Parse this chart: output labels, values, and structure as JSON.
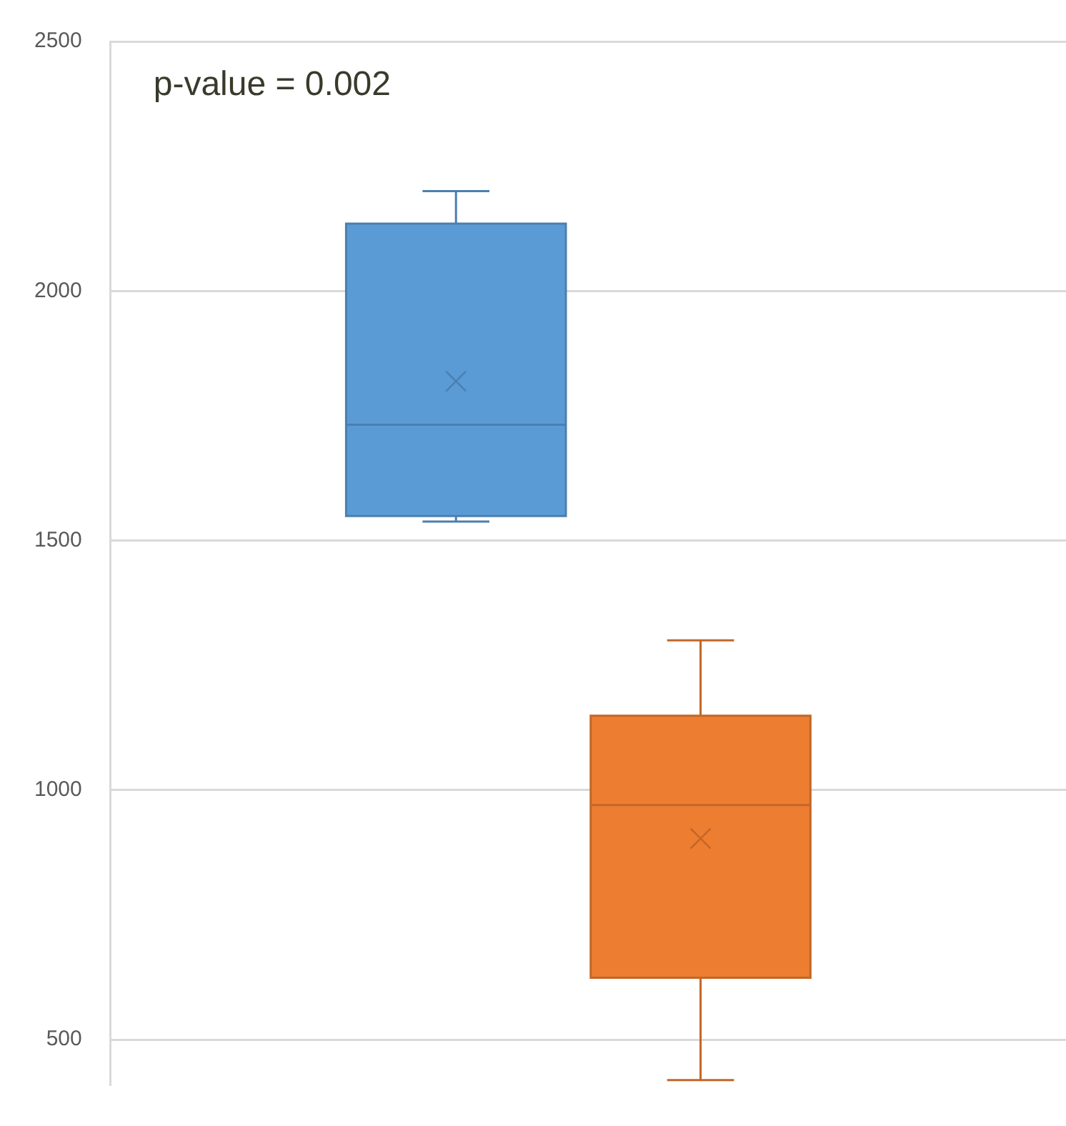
{
  "chart_data": {
    "type": "box",
    "categories": [
      null
    ],
    "series": [
      {
        "color": "#5b9bd5",
        "boxes": [
          {
            "low": 1538,
            "q1": 1549,
            "median": 1732,
            "q3": 2135,
            "high": 2200,
            "mean": 1819
          }
        ]
      },
      {
        "color": "#ed7d31",
        "boxes": [
          {
            "low": 419,
            "q1": 624,
            "median": 970,
            "q3": 1149,
            "high": 1300,
            "mean": 903
          }
        ]
      }
    ],
    "ylim": [
      410,
      2500
    ],
    "yticks": [
      500,
      1000,
      1500,
      2000,
      2500
    ],
    "grid": "y",
    "marker": "cross",
    "annotations": [
      "p-value = 0.002"
    ]
  }
}
